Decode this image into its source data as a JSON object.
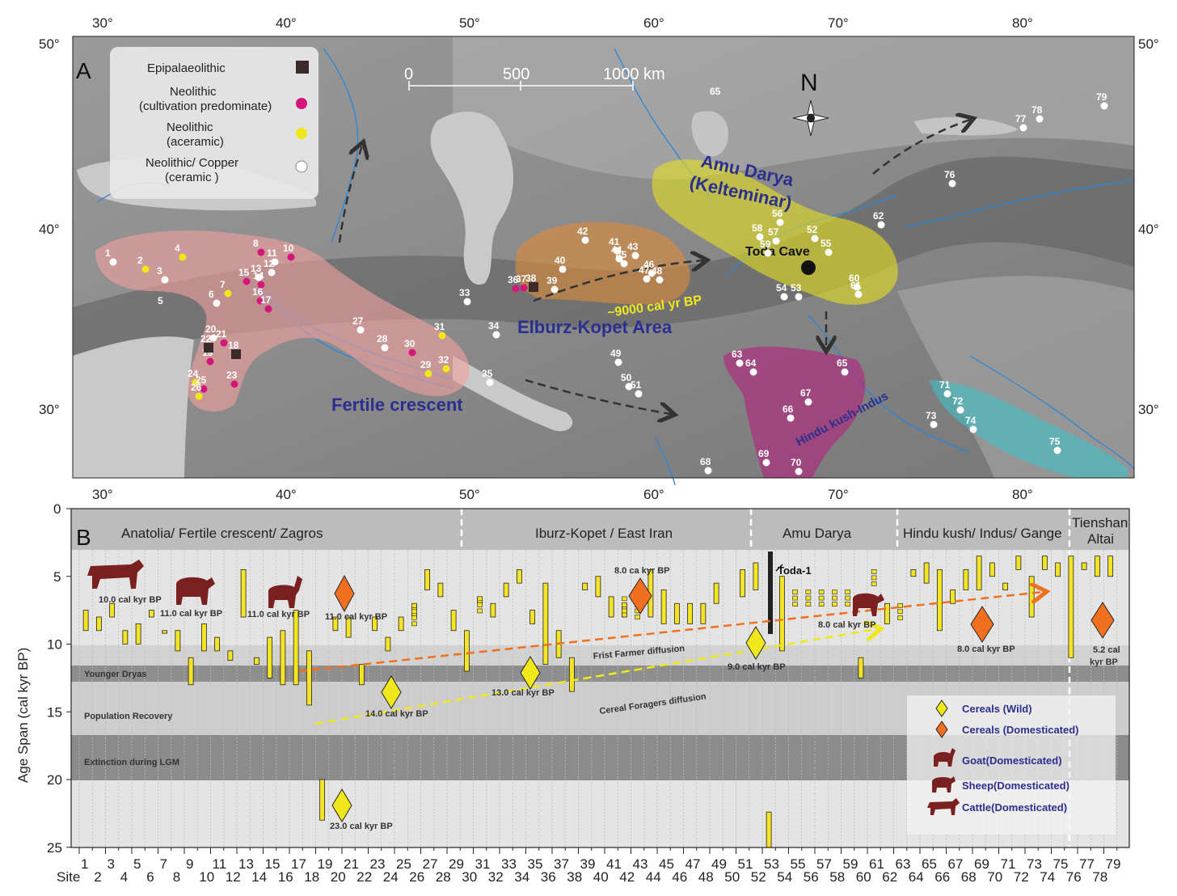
{
  "panelA": {
    "label": "A",
    "lon_ticks": [
      "30°",
      "40°",
      "50°",
      "60°",
      "70°",
      "80°"
    ],
    "lat_ticks": [
      "50°",
      "40°",
      "30°"
    ],
    "scale": {
      "labels": [
        "0",
        "500",
        "1000 km"
      ]
    },
    "north": "N",
    "legend": [
      {
        "label": "Epipalaeolithic",
        "marker": "square",
        "color": "#3a2a2a"
      },
      {
        "label": "Neolithic",
        "label2": "(cultivation predominate)",
        "marker": "circle",
        "color": "#d4167a"
      },
      {
        "label": "Neolithic",
        "label2": "(aceramic)",
        "marker": "circle",
        "color": "#f0e81a"
      },
      {
        "label": "Neolithic/ Copper",
        "label2": "(ceramic )",
        "marker": "circle",
        "color": "#ffffff"
      }
    ],
    "regions": {
      "fertile": "Fertile crescent",
      "elburz": "Elburz-Kopet Area",
      "elburz_date": "~9000 cal yr BP",
      "amu": "Amu Darya",
      "amu2": "(Kelteminar)",
      "hindu": "Hindu kush-Indus",
      "toda": "Toda  Cave"
    },
    "sites": [
      {
        "id": "1",
        "x": 140,
        "y": 324,
        "c": "w"
      },
      {
        "id": "2",
        "x": 180,
        "y": 333,
        "c": "y"
      },
      {
        "id": "3",
        "x": 204,
        "y": 346,
        "c": "w"
      },
      {
        "id": "4",
        "x": 226,
        "y": 318,
        "c": "y"
      },
      {
        "id": "5",
        "x": 205,
        "y": 372,
        "c": "n"
      },
      {
        "id": "6",
        "x": 268,
        "y": 375,
        "c": "w"
      },
      {
        "id": "7",
        "x": 282,
        "y": 363,
        "c": "y"
      },
      {
        "id": "8",
        "x": 323,
        "y": 312,
        "c": "m"
      },
      {
        "id": "10",
        "x": 360,
        "y": 318,
        "c": "m"
      },
      {
        "id": "11",
        "x": 340,
        "y": 324,
        "c": "w"
      },
      {
        "id": "12",
        "x": 336,
        "y": 337,
        "c": "w"
      },
      {
        "id": "13",
        "x": 320,
        "y": 343,
        "c": "w"
      },
      {
        "id": "14",
        "x": 323,
        "y": 352,
        "c": "m"
      },
      {
        "id": "15",
        "x": 305,
        "y": 348,
        "c": "m"
      },
      {
        "id": "16",
        "x": 322,
        "y": 372,
        "c": "m"
      },
      {
        "id": "17",
        "x": 332,
        "y": 382,
        "c": "m"
      },
      {
        "id": "18",
        "x": 292,
        "y": 438,
        "c": "sq"
      },
      {
        "id": "19",
        "x": 260,
        "y": 447,
        "c": "m"
      },
      {
        "id": "20",
        "x": 264,
        "y": 418,
        "c": "w"
      },
      {
        "id": "21",
        "x": 277,
        "y": 424,
        "c": "m"
      },
      {
        "id": "22",
        "x": 258,
        "y": 430,
        "c": "sq"
      },
      {
        "id": "23",
        "x": 290,
        "y": 475,
        "c": "m"
      },
      {
        "id": "24",
        "x": 242,
        "y": 473,
        "c": "y"
      },
      {
        "id": "25",
        "x": 252,
        "y": 481,
        "c": "m"
      },
      {
        "id": "26",
        "x": 246,
        "y": 490,
        "c": "y"
      },
      {
        "id": "27",
        "x": 446,
        "y": 408,
        "c": "w"
      },
      {
        "id": "28",
        "x": 476,
        "y": 430,
        "c": "w"
      },
      {
        "id": "29",
        "x": 530,
        "y": 462,
        "c": "y"
      },
      {
        "id": "30",
        "x": 510,
        "y": 436,
        "c": "m"
      },
      {
        "id": "31",
        "x": 547,
        "y": 415,
        "c": "y"
      },
      {
        "id": "32",
        "x": 552,
        "y": 456,
        "c": "y"
      },
      {
        "id": "33",
        "x": 578,
        "y": 373,
        "c": "w"
      },
      {
        "id": "34",
        "x": 614,
        "y": 414,
        "c": "w"
      },
      {
        "id": "35",
        "x": 606,
        "y": 473,
        "c": "w"
      },
      {
        "id": "36",
        "x": 638,
        "y": 357,
        "c": "m"
      },
      {
        "id": "37",
        "x": 648,
        "y": 356,
        "c": "m"
      },
      {
        "id": "38",
        "x": 660,
        "y": 355,
        "c": "sq"
      },
      {
        "id": "39",
        "x": 686,
        "y": 358,
        "c": "w"
      },
      {
        "id": "40",
        "x": 696,
        "y": 333,
        "c": "w"
      },
      {
        "id": "41",
        "x": 763,
        "y": 310,
        "c": "w"
      },
      {
        "id": "42",
        "x": 724,
        "y": 297,
        "c": "w"
      },
      {
        "id": "43",
        "x": 786,
        "y": 316,
        "c": "w"
      },
      {
        "id": "44",
        "x": 766,
        "y": 320,
        "c": "w"
      },
      {
        "id": "45",
        "x": 772,
        "y": 326,
        "c": "w"
      },
      {
        "id": "46",
        "x": 806,
        "y": 338,
        "c": "w"
      },
      {
        "id": "47",
        "x": 800,
        "y": 345,
        "c": "w"
      },
      {
        "id": "48",
        "x": 816,
        "y": 346,
        "c": "w"
      },
      {
        "id": "49",
        "x": 765,
        "y": 448,
        "c": "w"
      },
      {
        "id": "50",
        "x": 778,
        "y": 478,
        "c": "w"
      },
      {
        "id": "51",
        "x": 790,
        "y": 487,
        "c": "w"
      },
      {
        "id": "52",
        "x": 1008,
        "y": 295,
        "c": "w"
      },
      {
        "id": "53",
        "x": 988,
        "y": 367,
        "c": "w"
      },
      {
        "id": "54",
        "x": 970,
        "y": 367,
        "c": "w"
      },
      {
        "id": "55",
        "x": 1025,
        "y": 312,
        "c": "w"
      },
      {
        "id": "56",
        "x": 965,
        "y": 275,
        "c": "w"
      },
      {
        "id": "57",
        "x": 960,
        "y": 298,
        "c": "w"
      },
      {
        "id": "58",
        "x": 940,
        "y": 293,
        "c": "w"
      },
      {
        "id": "59",
        "x": 950,
        "y": 313,
        "c": "w"
      },
      {
        "id": "60",
        "x": 1060,
        "y": 355,
        "c": "w"
      },
      {
        "id": "61",
        "x": 1062,
        "y": 364,
        "c": "w"
      },
      {
        "id": "62",
        "x": 1090,
        "y": 278,
        "c": "w"
      },
      {
        "id": "63",
        "x": 915,
        "y": 449,
        "c": "w"
      },
      {
        "id": "64",
        "x": 932,
        "y": 460,
        "c": "w"
      },
      {
        "id": "65",
        "x": 1045,
        "y": 460,
        "c": "w"
      },
      {
        "id": "66",
        "x": 978,
        "y": 517,
        "c": "w"
      },
      {
        "id": "67",
        "x": 1000,
        "y": 497,
        "c": "w"
      },
      {
        "id": "68",
        "x": 876,
        "y": 582,
        "c": "w"
      },
      {
        "id": "69",
        "x": 948,
        "y": 572,
        "c": "w"
      },
      {
        "id": "70",
        "x": 988,
        "y": 583,
        "c": "w"
      },
      {
        "id": "71",
        "x": 1172,
        "y": 487,
        "c": "w"
      },
      {
        "id": "72",
        "x": 1188,
        "y": 507,
        "c": "w"
      },
      {
        "id": "73",
        "x": 1155,
        "y": 525,
        "c": "w"
      },
      {
        "id": "74",
        "x": 1204,
        "y": 531,
        "c": "w"
      },
      {
        "id": "75",
        "x": 1308,
        "y": 557,
        "c": "w"
      },
      {
        "id": "76",
        "x": 1178,
        "y": 227,
        "c": "w"
      },
      {
        "id": "77",
        "x": 1266,
        "y": 158,
        "c": "w"
      },
      {
        "id": "78",
        "x": 1286,
        "y": 147,
        "c": "w"
      },
      {
        "id": "79",
        "x": 1366,
        "y": 131,
        "c": "w"
      }
    ],
    "extra_labels": [
      {
        "text": "65",
        "x": 878,
        "y": 117
      }
    ]
  },
  "panelB": {
    "label": "B",
    "y_axis_title": "Age  Span  (cal kyr BP)",
    "y_ticks": [
      "0",
      "5",
      "10",
      "15",
      "20",
      "25"
    ],
    "x_axis_title": "Site",
    "region_headers": [
      "Anatolia/ Fertile crescent/ Zagros",
      "Iburz-Kopet / East  Iran",
      "Amu Darya",
      "Hindu kush/ Indus/ Gange",
      "Tienshan",
      "Altai"
    ],
    "bands": [
      "Younger Dryas",
      "Population  Recovery",
      "Extinction during LGM"
    ],
    "diffusion": [
      "Frist Farmer diffusion",
      "Cereal Foragers diffusion"
    ],
    "toda": "Toda-1",
    "dates": [
      {
        "text": "10.0  cal kyr BP"
      },
      {
        "text": "11.0 cal kyr BP"
      },
      {
        "text": "11.0  cal kyr BP"
      },
      {
        "text": "11.0 cal kyr BP"
      },
      {
        "text": "14.0  cal kyr BP"
      },
      {
        "text": "13.0 cal kyr BP"
      },
      {
        "text": "8.0  ca kyr BP"
      },
      {
        "text": "9.0  cal kyr BP"
      },
      {
        "text": "8.0  cal kyr BP"
      },
      {
        "text": "8.0  cal kyr BP"
      },
      {
        "text": "5.2  cal"
      },
      {
        "text": "kyr BP"
      },
      {
        "text": "23.0  cal kyr BP"
      }
    ],
    "legend": [
      {
        "label": "Cereals (Wild)"
      },
      {
        "label": "Cereals (Domesticated)"
      },
      {
        "label": "Goat(Domesticated)"
      },
      {
        "label": "Sheep(Domesticated)"
      },
      {
        "label": "Cattle(Domesticated)"
      }
    ],
    "site_ticks_top": [
      "1",
      "3",
      "5",
      "7",
      "9",
      "11",
      "13",
      "15",
      "17",
      "19",
      "21",
      "23",
      "25",
      "27",
      "29",
      "31",
      "33",
      "35",
      "37",
      "39",
      "41",
      "43",
      "45",
      "47",
      "49",
      "51",
      "53",
      "55",
      "57",
      "59",
      "61",
      "63",
      "65",
      "67",
      "69",
      "71",
      "73",
      "75",
      "77",
      "79"
    ],
    "site_ticks_bottom": [
      "2",
      "4",
      "6",
      "8",
      "10",
      "12",
      "14",
      "16",
      "18",
      "20",
      "22",
      "24",
      "26",
      "28",
      "30",
      "32",
      "34",
      "36",
      "38",
      "40",
      "42",
      "44",
      "46",
      "48",
      "50",
      "52",
      "54",
      "56",
      "58",
      "60",
      "62",
      "64",
      "66",
      "68",
      "70",
      "72",
      "74",
      "76",
      "78"
    ],
    "colors": {
      "bar": "#f4e424",
      "dom": "#f07020",
      "animal": "#7a2020",
      "band_dark": "#8c8c8c",
      "band_mid": "#b8b8b8",
      "band_light": "#d4d4d4"
    }
  }
}
